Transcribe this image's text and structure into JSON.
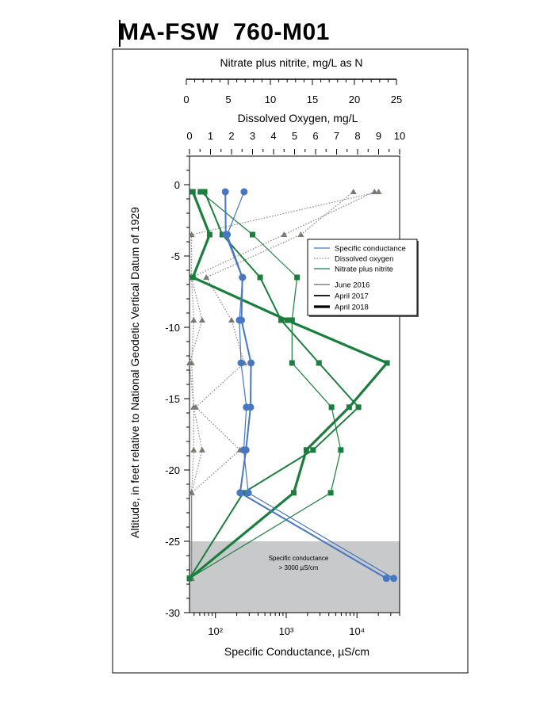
{
  "page": {
    "title": "MA-FSW  760-M01"
  },
  "chart_data": {
    "type": "line",
    "title": "MA-FSW  760-M01",
    "axes": {
      "nitrate": {
        "label": "Nitrate plus nitrite, mg/L as N",
        "range": [
          0,
          25
        ],
        "ticks": [
          0,
          5,
          10,
          15,
          20,
          25
        ],
        "tick_labels": [
          "0",
          "5",
          "10",
          "15",
          "20",
          "25"
        ]
      },
      "oxygen": {
        "label": "Dissolved Oxygen, mg/L",
        "range": [
          0,
          10
        ],
        "ticks": [
          0,
          1,
          2,
          3,
          4,
          5,
          6,
          7,
          8,
          9,
          10
        ],
        "tick_labels": [
          "0",
          "1",
          "2",
          "3",
          "4",
          "5",
          "6",
          "7",
          "8",
          "9",
          "10"
        ]
      },
      "conductance": {
        "label": "Specific Conductance, µS/cm",
        "scale": "log",
        "range": [
          43,
          40000
        ],
        "ticks": [
          100,
          1000,
          10000
        ],
        "tick_labels": [
          "10²",
          "10³",
          "10⁴"
        ]
      },
      "altitude": {
        "label": "Altitude, in feet relative to National Geodetic Vertical Datum of 1929",
        "range": [
          -30,
          2
        ],
        "ticks": [
          0,
          -5,
          -10,
          -15,
          -20,
          -25,
          -30
        ],
        "tick_labels": [
          "0",
          "-5",
          "-10",
          "-15",
          "-20",
          "-25",
          "-30"
        ]
      }
    },
    "shaded_region": {
      "altitude_range": [
        -25,
        -30
      ],
      "label_line1": "Specific conductance",
      "label_line2": "> 3000 µS/cm",
      "color": "#c8c9cb"
    },
    "legend": {
      "placement": "right",
      "parameters": [
        {
          "name": "Specific conductance",
          "color": "#4677c0",
          "style": "solid"
        },
        {
          "name": "Dissolved oxygen",
          "color": "#8c8c8c",
          "style": "dotted"
        },
        {
          "name": "Nitrate plus nitrite",
          "color": "#1a7f3c",
          "style": "solid"
        }
      ],
      "dates": [
        {
          "name": "June 2016",
          "weight": "thin"
        },
        {
          "name": "April 2017",
          "weight": "medium"
        },
        {
          "name": "April 2018",
          "weight": "thick"
        }
      ]
    },
    "colors": {
      "conductance": "#4677c0",
      "oxygen": "#8c8c8c",
      "oxygen_marker": "#7a7a72",
      "nitrate": "#1a7f3c"
    },
    "grid": false,
    "series": [
      {
        "parameter": "conductance",
        "date": "June 2016",
        "points": [
          [
            254,
            -0.5
          ],
          [
            147,
            -3.5
          ],
          [
            242,
            -6.5
          ],
          [
            218,
            -9.5
          ],
          [
            230,
            -12.5
          ],
          [
            274,
            -15.6
          ],
          [
            251,
            -18.6
          ],
          [
            291,
            -21.6
          ],
          [
            33000,
            -27.6
          ]
        ]
      },
      {
        "parameter": "conductance",
        "date": "April 2017",
        "points": [
          [
            138,
            -0.5
          ],
          [
            140,
            -3.5
          ],
          [
            240,
            -6.5
          ],
          [
            233,
            -9.5
          ],
          [
            318,
            -12.5
          ],
          [
            313,
            -15.6
          ],
          [
            270,
            -18.6
          ],
          [
            223,
            -21.6
          ],
          [
            26000,
            -27.6
          ]
        ]
      },
      {
        "parameter": "oxygen",
        "date": "June 2016",
        "points": [
          [
            9.0,
            -0.5
          ],
          [
            0.1,
            -3.5
          ],
          [
            0.1,
            -6.5
          ],
          [
            0.6,
            -9.5
          ],
          [
            0.0,
            -12.5
          ],
          [
            0.2,
            -15.6
          ],
          [
            0.6,
            -18.6
          ],
          [
            0.1,
            -21.6
          ],
          [
            0.1,
            -27.6
          ]
        ]
      },
      {
        "parameter": "oxygen",
        "date": "April 2017",
        "points": [
          [
            7.8,
            -0.5
          ],
          [
            5.3,
            -3.5
          ],
          [
            0.8,
            -6.5
          ],
          [
            2.0,
            -9.5
          ],
          [
            2.6,
            -12.5
          ],
          [
            0.3,
            -15.6
          ],
          [
            2.4,
            -18.6
          ],
          [
            0.1,
            -21.6
          ],
          [
            0.1,
            -27.6
          ]
        ]
      },
      {
        "parameter": "oxygen",
        "date": "April 2018",
        "points": [
          [
            8.8,
            -0.5
          ],
          [
            4.5,
            -3.5
          ],
          [
            0.1,
            -6.5
          ],
          [
            0.2,
            -9.5
          ],
          [
            0.1,
            -12.5
          ],
          [
            0.2,
            -15.6
          ],
          [
            0.2,
            -18.6
          ],
          [
            0.1,
            -21.6
          ],
          [
            0.1,
            -27.6
          ]
        ]
      },
      {
        "parameter": "nitrate",
        "date": "June 2016",
        "points": [
          [
            1.3,
            -0.5
          ],
          [
            7.5,
            -3.5
          ],
          [
            12.8,
            -6.5
          ],
          [
            12.2,
            -9.5
          ],
          [
            12.2,
            -12.5
          ],
          [
            16.9,
            -15.6
          ],
          [
            18.0,
            -18.6
          ],
          [
            16.8,
            -21.6
          ],
          [
            0.0,
            -27.6
          ]
        ]
      },
      {
        "parameter": "nitrate",
        "date": "April 2017",
        "points": [
          [
            1.8,
            -0.5
          ],
          [
            3.9,
            -3.5
          ],
          [
            8.4,
            -6.5
          ],
          [
            10.9,
            -9.5
          ],
          [
            15.4,
            -12.5
          ],
          [
            20.1,
            -15.6
          ],
          [
            14.7,
            -18.6
          ],
          [
            6.4,
            -21.6
          ],
          [
            0.0,
            -27.6
          ]
        ]
      },
      {
        "parameter": "nitrate",
        "date": "April 2018",
        "points": [
          [
            0.4,
            -0.5
          ],
          [
            2.4,
            -3.5
          ],
          [
            0.4,
            -6.5
          ],
          [
            11.6,
            -9.5
          ],
          [
            23.5,
            -12.5
          ],
          [
            19.0,
            -15.6
          ],
          [
            13.9,
            -18.6
          ],
          [
            12.4,
            -21.6
          ],
          [
            0.0,
            -27.6
          ]
        ]
      }
    ]
  }
}
